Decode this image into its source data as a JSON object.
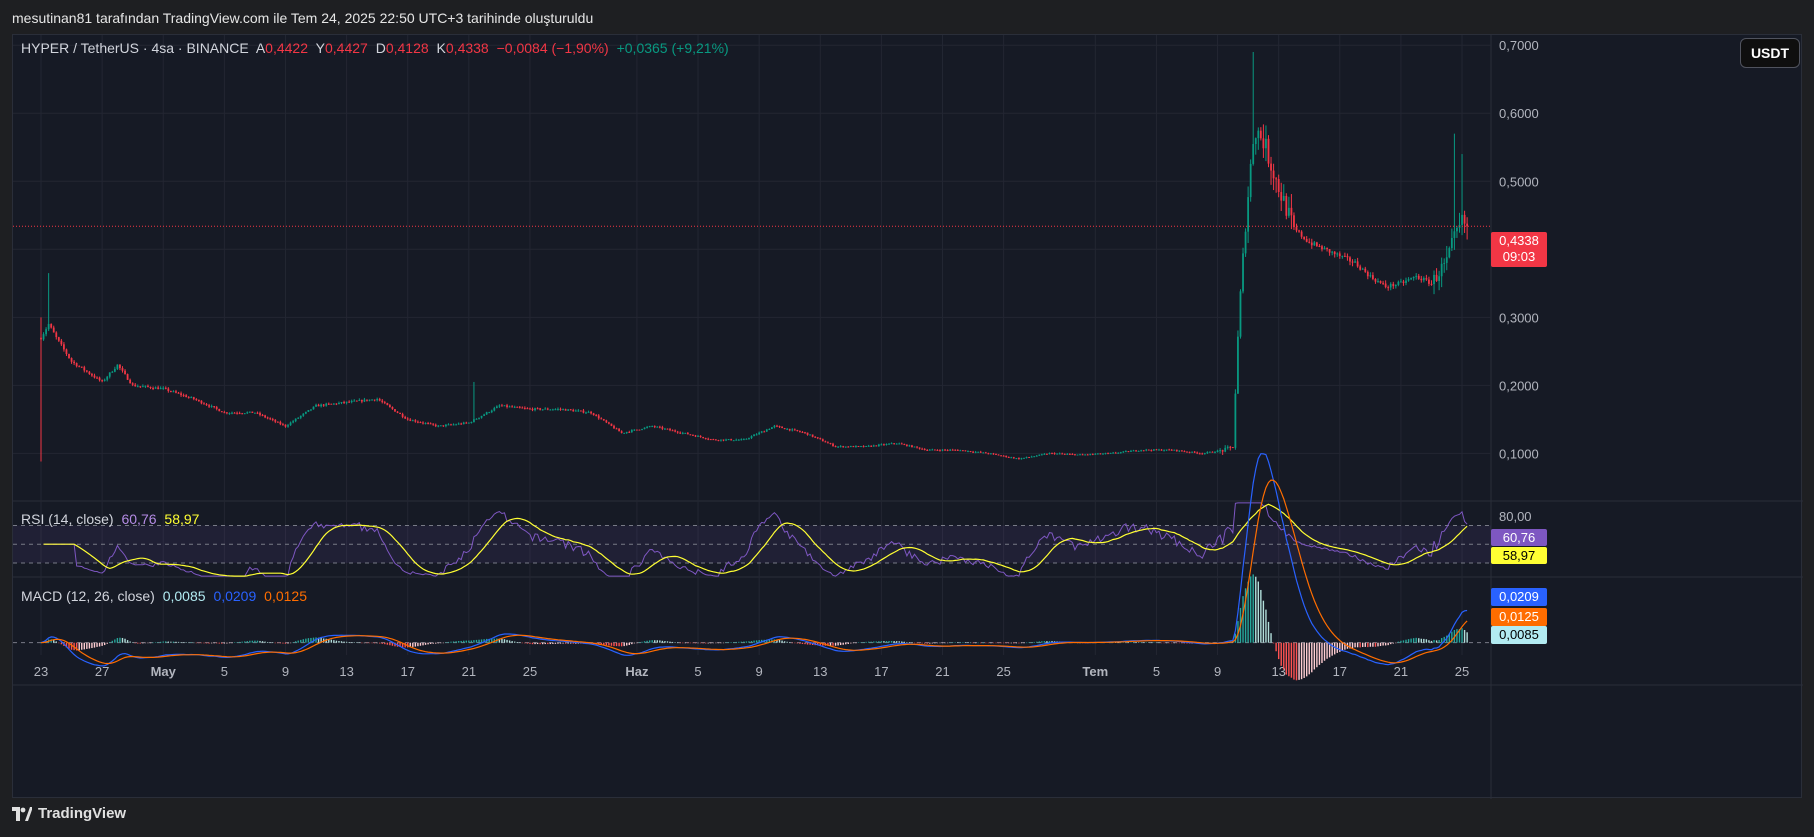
{
  "caption": "mesutinan81 tarafından TradingView.com ile Tem 24, 2025 22:50 UTC+3 tarihinde oluşturuldu",
  "legend": {
    "symbol": "HYPER / TetherUS · 4sa · BINANCE",
    "open_label": "A",
    "open": "0,4422",
    "high_label": "Y",
    "high": "0,4427",
    "low_label": "D",
    "low": "0,4128",
    "close_label": "K",
    "close": "0,4338",
    "change": "−0,0084 (−1,90%)",
    "change2": "+0,0365 (+9,21%)"
  },
  "currency_button": "USDT",
  "last_price": {
    "value": "0,4338",
    "countdown": "09:03",
    "color": "#f23645"
  },
  "rsi": {
    "title": "RSI (14, close)",
    "value": "60,76",
    "ma": "58,97",
    "upper_level_label": "80,00",
    "upper": 70,
    "lower": 30,
    "upper_label_value": 80,
    "value_color": "#7e57c2",
    "ma_color": "#ffff33"
  },
  "macd": {
    "title": "MACD (12, 26, close)",
    "hist": "0,0085",
    "macd": "0,0209",
    "signal": "0,0125",
    "macd_color": "#2962ff",
    "signal_color": "#ff6d00",
    "hist_color": "#b2ebf2"
  },
  "watermark": "TradingView",
  "chart_data": {
    "type": "candlestick",
    "title": "HYPER / TetherUS · 4sa · BINANCE",
    "y_ticks": [
      "0,1000",
      "0,2000",
      "0,3000",
      "0,4000",
      "0,5000",
      "0,6000",
      "0,7000"
    ],
    "y_tick_values": [
      0.1,
      0.2,
      0.3,
      0.4,
      0.5,
      0.6,
      0.7
    ],
    "ylim": [
      0.03,
      0.715
    ],
    "x_ticks": [
      "23",
      "27",
      "May",
      "5",
      "9",
      "13",
      "17",
      "21",
      "25",
      "Haz",
      "5",
      "9",
      "13",
      "17",
      "21",
      "25",
      "Tem",
      "5",
      "9",
      "13",
      "17",
      "21",
      "25"
    ],
    "x_tick_days": [
      0,
      4,
      8,
      12,
      16,
      20,
      24,
      28,
      32,
      39,
      43,
      47,
      51,
      55,
      59,
      63,
      69,
      73,
      77,
      81,
      85,
      89,
      93
    ],
    "start_date": "2025-04-22",
    "price_path_days": [
      0,
      0.5,
      1,
      2,
      4,
      5,
      6,
      8,
      10,
      12,
      14,
      16,
      18,
      20,
      22,
      24,
      26,
      28,
      30,
      32,
      34,
      36,
      38,
      40,
      42,
      44,
      46,
      48,
      50,
      52,
      54,
      56,
      58,
      60,
      62,
      64,
      66,
      68,
      70,
      72,
      74,
      76,
      77.5,
      78,
      78.4,
      78.8,
      79.4,
      80,
      81,
      82,
      83,
      84,
      85,
      86,
      87,
      88,
      89,
      90,
      91,
      91.6,
      92,
      92.4,
      93,
      93.4
    ],
    "price_path": [
      0.27,
      0.29,
      0.27,
      0.235,
      0.205,
      0.23,
      0.2,
      0.195,
      0.18,
      0.16,
      0.16,
      0.14,
      0.17,
      0.175,
      0.18,
      0.15,
      0.14,
      0.145,
      0.17,
      0.165,
      0.165,
      0.16,
      0.13,
      0.14,
      0.13,
      0.12,
      0.12,
      0.14,
      0.13,
      0.11,
      0.11,
      0.115,
      0.105,
      0.105,
      0.1,
      0.092,
      0.1,
      0.098,
      0.1,
      0.105,
      0.105,
      0.1,
      0.105,
      0.11,
      0.3,
      0.43,
      0.58,
      0.56,
      0.49,
      0.43,
      0.41,
      0.4,
      0.39,
      0.38,
      0.36,
      0.345,
      0.35,
      0.36,
      0.35,
      0.37,
      0.38,
      0.41,
      0.44,
      0.4338
    ],
    "last_value": 0.4338,
    "rsi_ylim": [
      15,
      95
    ],
    "macd_ylim": [
      -0.008,
      0.042
    ]
  }
}
